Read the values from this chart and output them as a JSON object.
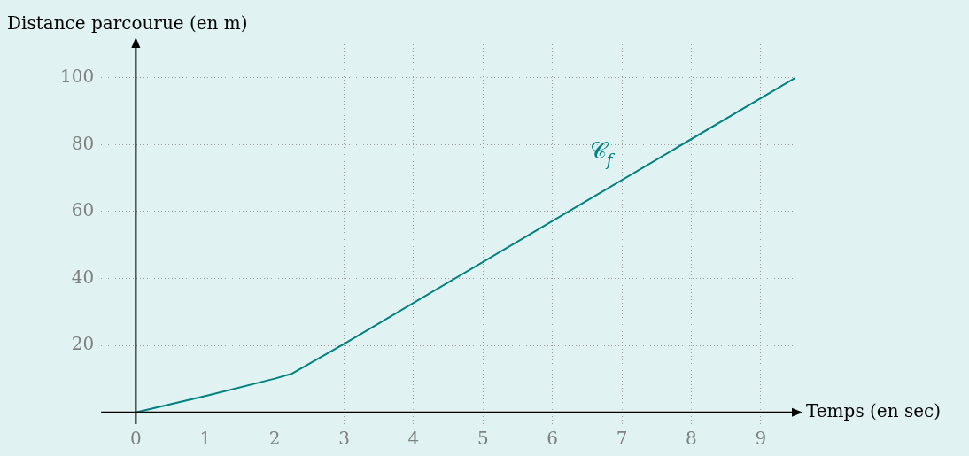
{
  "chart_data": {
    "type": "line",
    "xlabel": "Temps (en sec)",
    "ylabel": "Distance parcourue (en m)",
    "x": [
      0,
      1,
      2,
      2.24,
      3,
      9.5
    ],
    "series": [
      {
        "color": "#008080",
        "values": [
          0,
          4.9,
          10.1,
          11.5,
          20.5,
          100
        ]
      }
    ],
    "xlim": [
      -0.5,
      9.5
    ],
    "ylim": [
      -3.5,
      110
    ],
    "xticks": [
      0,
      1,
      2,
      3,
      4,
      5,
      6,
      7,
      8,
      9
    ],
    "yticks": [
      20,
      40,
      60,
      80,
      100
    ],
    "grid": true,
    "legend": false,
    "marker": "none",
    "line_style": "solid",
    "annotations": [
      "𝒞$_{f}$"
    ]
  }
}
